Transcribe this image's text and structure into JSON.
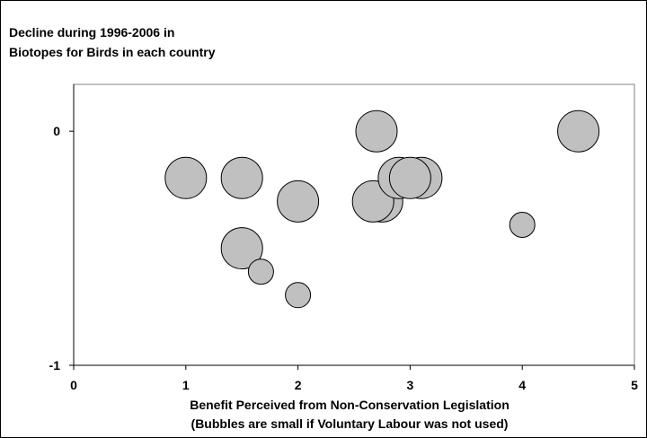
{
  "chart_data": {
    "type": "scatter",
    "subtype": "bubble",
    "title_lines": [
      "Decline during 1996-2006 in",
      "Biotopes for Birds in each country"
    ],
    "xlabel_lines": [
      "Benefit Perceived from Non-Conservation Legislation",
      "(Bubbles are small if Voluntary Labour was not used)"
    ],
    "ylabel": "",
    "xlim": [
      0,
      5
    ],
    "ylim": [
      -1,
      0.2
    ],
    "x_ticks": [
      0,
      1,
      2,
      3,
      4,
      5
    ],
    "x_tick_labels": [
      "0",
      "1",
      "2",
      "3",
      "4",
      "5"
    ],
    "y_ticks": [
      -1,
      0
    ],
    "y_tick_labels": [
      "-1",
      "0"
    ],
    "grid": false,
    "legend": "none",
    "bubble_color": "#c0c0c0",
    "points": [
      {
        "x": 1.0,
        "y": -0.2,
        "size": "large"
      },
      {
        "x": 1.5,
        "y": -0.2,
        "size": "large"
      },
      {
        "x": 1.5,
        "y": -0.5,
        "size": "large"
      },
      {
        "x": 1.67,
        "y": -0.6,
        "size": "small"
      },
      {
        "x": 2.0,
        "y": -0.3,
        "size": "large"
      },
      {
        "x": 2.0,
        "y": -0.7,
        "size": "small"
      },
      {
        "x": 2.75,
        "y": -0.3,
        "size": "large"
      },
      {
        "x": 2.67,
        "y": -0.3,
        "size": "large"
      },
      {
        "x": 2.7,
        "y": 0.0,
        "size": "large"
      },
      {
        "x": 3.1,
        "y": -0.2,
        "size": "large"
      },
      {
        "x": 2.9,
        "y": -0.2,
        "size": "large"
      },
      {
        "x": 3.0,
        "y": -0.2,
        "size": "large"
      },
      {
        "x": 4.0,
        "y": -0.4,
        "size": "small"
      },
      {
        "x": 4.5,
        "y": 0.0,
        "size": "large"
      }
    ]
  }
}
